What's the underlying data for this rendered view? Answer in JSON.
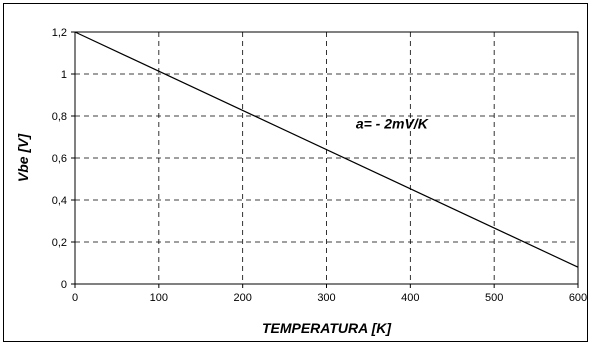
{
  "chart_data": {
    "type": "line",
    "title": "",
    "xlabel": "TEMPERATURA [K]",
    "ylabel": "Vbe [V]",
    "xlim": [
      0,
      600
    ],
    "ylim": [
      0,
      1.2
    ],
    "x_ticks": [
      0,
      100,
      200,
      300,
      400,
      500,
      600
    ],
    "x_tick_labels": [
      "0",
      "100",
      "200",
      "300",
      "400",
      "500",
      "600"
    ],
    "y_ticks": [
      0,
      0.2,
      0.4,
      0.6,
      0.8,
      1.0,
      1.2
    ],
    "y_tick_labels": [
      "0",
      "0,2",
      "0,4",
      "0,6",
      "0,8",
      "1",
      "1,2"
    ],
    "grid": true,
    "grid_style": "dashed",
    "series": [
      {
        "x": [
          0,
          600
        ],
        "y": [
          1.2,
          0.08
        ],
        "color": "#000000"
      }
    ],
    "annotation": {
      "text": "a= - 2mV/K",
      "x": 335,
      "y": 0.74
    }
  }
}
